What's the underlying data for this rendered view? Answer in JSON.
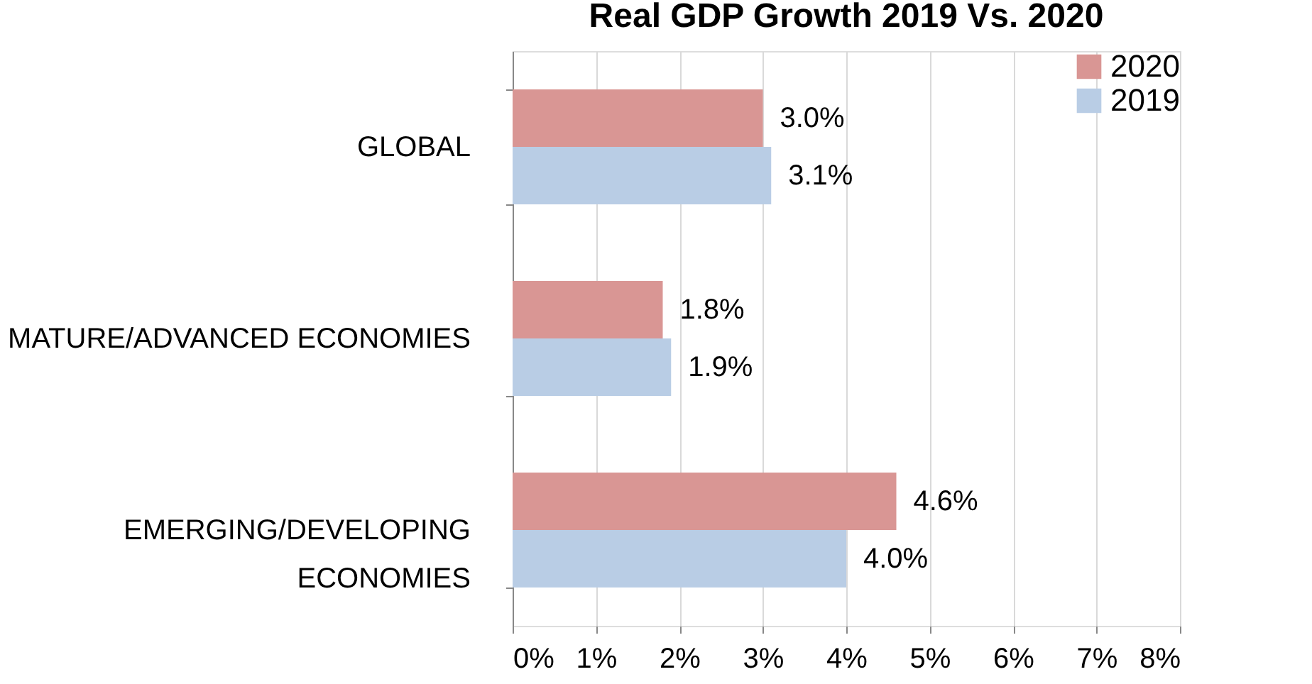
{
  "chart_data": {
    "type": "bar",
    "orientation": "horizontal",
    "title": "Real GDP Growth 2019 Vs. 2020",
    "categories": [
      "GLOBAL",
      "MATURE/ADVANCED ECONOMIES",
      "EMERGING/DEVELOPING\nECONOMIES"
    ],
    "series": [
      {
        "name": "2020",
        "color": "#d99694",
        "values": [
          3.0,
          1.8,
          4.6
        ],
        "value_labels": [
          "3.0%",
          "1.8%",
          "4.6%"
        ]
      },
      {
        "name": "2019",
        "color": "#b9cde5",
        "values": [
          3.1,
          1.9,
          4.0
        ],
        "value_labels": [
          "3.1%",
          "1.9%",
          "4.0%"
        ]
      }
    ],
    "xlim": [
      0,
      8
    ],
    "xticks": [
      {
        "value": 0,
        "label": "0%"
      },
      {
        "value": 1,
        "label": "1%"
      },
      {
        "value": 2,
        "label": "2%"
      },
      {
        "value": 3,
        "label": "3%"
      },
      {
        "value": 4,
        "label": "4%"
      },
      {
        "value": 5,
        "label": "5%"
      },
      {
        "value": 6,
        "label": "6%"
      },
      {
        "value": 7,
        "label": "7%"
      },
      {
        "value": 8,
        "label": "8%"
      }
    ],
    "grid": "x",
    "legend": "top right"
  }
}
